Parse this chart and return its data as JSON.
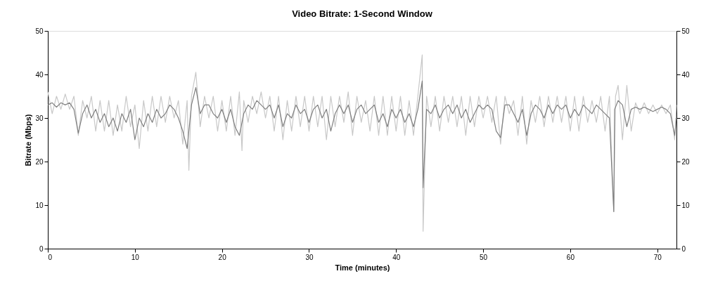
{
  "chart_data": {
    "type": "line",
    "title": "Video Bitrate: 1-Second Window",
    "xlabel": "Time (minutes)",
    "ylabel": "Bitrate (Mbps)",
    "xlim": [
      0,
      72.2
    ],
    "xticks": [
      0,
      10,
      20,
      30,
      40,
      50,
      60,
      70
    ],
    "ylim": [
      0,
      50
    ],
    "yticks": [
      0,
      10,
      20,
      30,
      40,
      50
    ],
    "y2lim": [
      0,
      50
    ],
    "y2ticks": [
      0,
      10,
      20,
      30,
      40,
      50
    ],
    "grid": false,
    "line_style": "solid",
    "marker": "none",
    "series": [
      {
        "color": "#c8c8c8",
        "x": [
          0,
          0.5,
          1,
          1.5,
          2,
          2.5,
          3,
          3.5,
          4,
          4.5,
          5,
          5.5,
          6,
          6.5,
          7,
          7.5,
          8,
          8.5,
          9,
          9.5,
          10,
          10.5,
          11,
          11.5,
          12,
          12.5,
          13,
          13.5,
          14,
          14.5,
          15,
          15.5,
          16,
          16.2,
          16.5,
          17,
          17.5,
          18,
          18.5,
          19,
          19.5,
          20,
          20.5,
          21,
          21.5,
          22,
          22.3,
          22.5,
          23,
          23.5,
          24,
          24.5,
          25,
          25.5,
          26,
          26.5,
          27,
          27.5,
          28,
          28.5,
          29,
          29.5,
          30,
          30.5,
          31,
          31.5,
          32,
          32.5,
          33,
          33.5,
          34,
          34.5,
          35,
          35.5,
          36,
          36.5,
          37,
          37.5,
          38,
          38.5,
          39,
          39.5,
          40,
          40.5,
          41,
          41.5,
          42,
          42.5,
          43,
          43.1,
          43.5,
          44,
          44.5,
          45,
          45.5,
          46,
          46.5,
          47,
          47.5,
          48,
          48.5,
          49,
          49.5,
          50,
          50.5,
          51,
          51.5,
          52,
          52.5,
          53,
          53.5,
          54,
          54.5,
          55,
          55.5,
          56,
          56.5,
          57,
          57.5,
          58,
          58.5,
          59,
          59.5,
          60,
          60.5,
          61,
          61.5,
          62,
          62.5,
          63,
          63.5,
          64,
          64.5,
          65,
          65.2,
          65.5,
          66,
          66.5,
          67,
          67.5,
          68,
          68.5,
          69,
          69.5,
          70,
          70.5,
          71,
          71.5,
          72,
          72.2
        ],
        "values": [
          36,
          31,
          35,
          32,
          35.5,
          32,
          35,
          26,
          34,
          30,
          35,
          27,
          34,
          27,
          34,
          26,
          33,
          27,
          35,
          28,
          33,
          23,
          34,
          27,
          35,
          28,
          35,
          29,
          35,
          30,
          34,
          24,
          34,
          18,
          35,
          40.5,
          28,
          35,
          30,
          35,
          27,
          34,
          27,
          35,
          26,
          36,
          22.5,
          34,
          29,
          35,
          31,
          36,
          30,
          35,
          27,
          35,
          25,
          34,
          27,
          35,
          28,
          35,
          27,
          35,
          28,
          35,
          25,
          35,
          28,
          35,
          29,
          36,
          26,
          35,
          29,
          34,
          27,
          35,
          26,
          35,
          26,
          35,
          27,
          35,
          26,
          34,
          26,
          35,
          44.5,
          4,
          35,
          28,
          35,
          27,
          35,
          29,
          35,
          28,
          35,
          26,
          35,
          28,
          35,
          30,
          35,
          29,
          35,
          24,
          35,
          31,
          34,
          26,
          35,
          24,
          34,
          29,
          35,
          28,
          35,
          29,
          35,
          29,
          35,
          27,
          35,
          27,
          35,
          29,
          34,
          29,
          35,
          27,
          35,
          8.5,
          35,
          37.5,
          25,
          37.5,
          27,
          33.5,
          31,
          33.5,
          31,
          33,
          31,
          33,
          31,
          33,
          25,
          33
        ]
      },
      {
        "color": "#7f7f7f",
        "x": [
          0,
          0.5,
          1,
          1.5,
          2,
          2.5,
          3,
          3.5,
          4,
          4.5,
          5,
          5.5,
          6,
          6.5,
          7,
          7.5,
          8,
          8.5,
          9,
          9.5,
          10,
          10.5,
          11,
          11.5,
          12,
          12.5,
          13,
          13.5,
          14,
          14.5,
          15,
          15.5,
          16,
          16.5,
          17,
          17.5,
          18,
          18.5,
          19,
          19.5,
          20,
          20.5,
          21,
          21.5,
          22,
          22.5,
          23,
          23.5,
          24,
          24.5,
          25,
          25.5,
          26,
          26.5,
          27,
          27.5,
          28,
          28.5,
          29,
          29.5,
          30,
          30.5,
          31,
          31.5,
          32,
          32.5,
          33,
          33.5,
          34,
          34.5,
          35,
          35.5,
          36,
          36.5,
          37,
          37.5,
          38,
          38.5,
          39,
          39.5,
          40,
          40.5,
          41,
          41.5,
          42,
          42.5,
          43,
          43.1,
          43.5,
          44,
          44.5,
          45,
          45.5,
          46,
          46.5,
          47,
          47.5,
          48,
          48.5,
          49,
          49.5,
          50,
          50.5,
          51,
          51.5,
          52,
          52.5,
          53,
          53.5,
          54,
          54.5,
          55,
          55.5,
          56,
          56.5,
          57,
          57.5,
          58,
          58.5,
          59,
          59.5,
          60,
          60.5,
          61,
          61.5,
          62,
          62.5,
          63,
          63.5,
          64,
          64.5,
          65,
          65.1,
          65.5,
          66,
          66.5,
          67,
          67.5,
          68,
          68.5,
          69,
          69.5,
          70,
          70.5,
          71,
          71.5,
          72,
          72.2
        ],
        "values": [
          33,
          33.5,
          32.5,
          33.5,
          33,
          33.5,
          32,
          26.5,
          31,
          33,
          30,
          32,
          29,
          31,
          28,
          30,
          27,
          31,
          29,
          32,
          25,
          30,
          28,
          31,
          29,
          32,
          30,
          31,
          33,
          32,
          30,
          27,
          23,
          33,
          37,
          31,
          33,
          33,
          31,
          30,
          32,
          29,
          32,
          28,
          26,
          31,
          33,
          32,
          34,
          33,
          32,
          33,
          30,
          33,
          28,
          31,
          30,
          33,
          31,
          32,
          29,
          32,
          33,
          30,
          32,
          27,
          31,
          33,
          31,
          33,
          29,
          32,
          33,
          31,
          32,
          33,
          29,
          31,
          28,
          32,
          30,
          32,
          29,
          31,
          28,
          32,
          38.5,
          14,
          32,
          31,
          33,
          30,
          32,
          33,
          31,
          33,
          30,
          32,
          29,
          31,
          33,
          32,
          33,
          32,
          27,
          25.5,
          33,
          33,
          31,
          29,
          32,
          26,
          31,
          33,
          32,
          30,
          33,
          31,
          33,
          32,
          33,
          30,
          32,
          30.5,
          33,
          32,
          31,
          33,
          32,
          31,
          30,
          8.5,
          32,
          34,
          33,
          28,
          32,
          32.5,
          32,
          32.5,
          32,
          31.5,
          32,
          32.5,
          32,
          31,
          26,
          30
        ]
      }
    ]
  }
}
